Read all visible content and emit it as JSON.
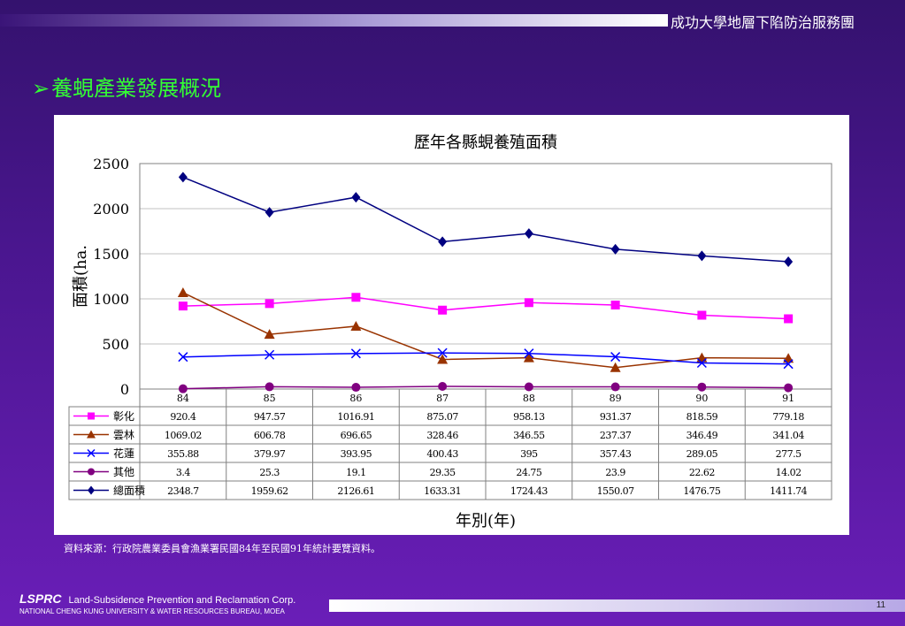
{
  "header": {
    "org_title": "成功大學地層下陷防治服務團"
  },
  "slide": {
    "heading": "養蜆產業發展概況",
    "heading_marker": "➢"
  },
  "source_note": "資料來源：行政院農業委員會漁業署民國84年至民國91年統計要覽資料。",
  "footer": {
    "brand": "LSPRC",
    "corp": "Land-Subsidence Prevention and Reclamation Corp.",
    "sub": "NATIONAL CHENG KUNG UNIVERSITY & WATER RESOURCES BUREAU, MOEA",
    "page_number": "11"
  },
  "chart_data": {
    "type": "line",
    "title": "歷年各縣蜆養殖面積",
    "xlabel": "年別(年)",
    "ylabel": "面積(ha.",
    "ylim": [
      0,
      2500
    ],
    "yticks": [
      "0",
      "500",
      "1000",
      "1500",
      "2000",
      "2500"
    ],
    "categories": [
      "84",
      "85",
      "86",
      "87",
      "88",
      "89",
      "90",
      "91"
    ],
    "grid": true,
    "legend": "data-table-left",
    "series": [
      {
        "name": "彰化",
        "color": "#ff00ff",
        "marker": "square",
        "values": [
          920.4,
          947.57,
          1016.91,
          875.07,
          958.13,
          931.37,
          818.59,
          779.18
        ],
        "labels": [
          "920.4",
          "947.57",
          "1016.91",
          "875.07",
          "958.13",
          "931.37",
          "818.59",
          "779.18"
        ]
      },
      {
        "name": "雲林",
        "color": "#993300",
        "marker": "triangle",
        "values": [
          1069.02,
          606.78,
          696.65,
          328.46,
          346.55,
          237.37,
          346.49,
          341.04
        ],
        "labels": [
          "1069.02",
          "606.78",
          "696.65",
          "328.46",
          "346.55",
          "237.37",
          "346.49",
          "341.04"
        ]
      },
      {
        "name": "花蓮",
        "color": "#0000ff",
        "marker": "x",
        "values": [
          355.88,
          379.97,
          393.95,
          400.43,
          395,
          357.43,
          289.05,
          277.5
        ],
        "labels": [
          "355.88",
          "379.97",
          "393.95",
          "400.43",
          "395",
          "357.43",
          "289.05",
          "277.5"
        ]
      },
      {
        "name": "其他",
        "color": "#800080",
        "marker": "circle",
        "values": [
          3.4,
          25.3,
          19.1,
          29.35,
          24.75,
          23.9,
          22.62,
          14.02
        ],
        "labels": [
          "3.4",
          "25.3",
          "19.1",
          "29.35",
          "24.75",
          "23.9",
          "22.62",
          "14.02"
        ]
      },
      {
        "name": "總面積",
        "color": "#000080",
        "marker": "diamond",
        "values": [
          2348.7,
          1959.62,
          2126.61,
          1633.31,
          1724.43,
          1550.07,
          1476.75,
          1411.74
        ],
        "labels": [
          "2348.7",
          "1959.62",
          "2126.61",
          "1633.31",
          "1724.43",
          "1550.07",
          "1476.75",
          "1411.74"
        ]
      }
    ]
  }
}
